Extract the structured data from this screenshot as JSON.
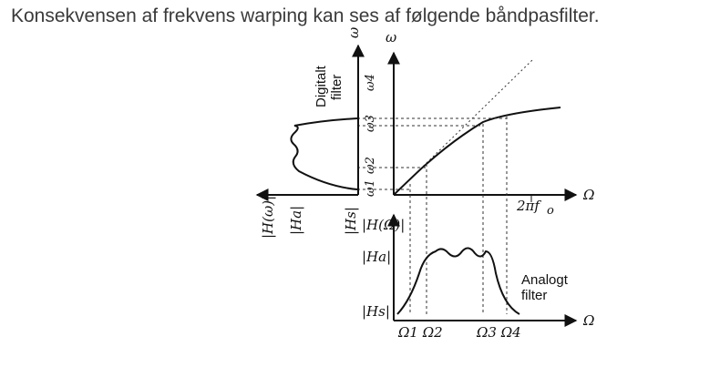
{
  "heading": "Konsekvensen af frekvens warping kan ses af følgende båndpasfilter.",
  "labels": {
    "omega_axis": "ω",
    "omega_axis_left": "ω",
    "Omega_axis_top": "Ω",
    "Omega_axis_bottom": "Ω",
    "two_pi_fo": "2πf",
    "fo_sub": "o",
    "omega1": "ω1",
    "omega2": "ω2",
    "omega3": "ω3",
    "omega4": "ω4",
    "digital_line1": "Digitalt",
    "digital_line2": "filter",
    "analog_line1": "Analogt",
    "analog_line2": "filter",
    "H_omega_mag": "|H(ω)|",
    "Ha_left": "|Ha|",
    "Hs_left": "|Hs|",
    "H_Omega_mag": "|H(Ω)|",
    "Ha_analog": "|Ha|",
    "Hs_analog": "|Hs|",
    "Omega12": "Ω1 Ω2",
    "Omega34": "Ω3 Ω4"
  }
}
